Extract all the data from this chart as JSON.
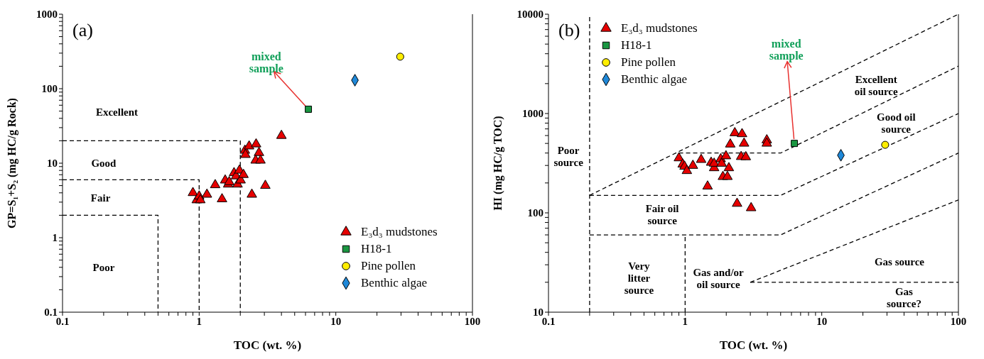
{
  "chart_data": [
    {
      "type": "scatter",
      "title": "(a)",
      "xlabel": "TOC (wt. %)",
      "ylabel": "GP=S₁+S₂ (mg HC/g Rock)",
      "log": "xy",
      "legend": "bottom right",
      "xlim": [
        0.1,
        100
      ],
      "ylim": [
        0.1,
        1000
      ],
      "xticks": [
        0.1,
        {
          "value": 0.2,
          "label": null
        },
        {
          "value": 0.3,
          "label": null
        },
        {
          "value": 0.4,
          "label": null
        },
        {
          "value": 0.5,
          "label": null
        },
        {
          "value": 0.6,
          "label": null
        },
        {
          "value": 0.7,
          "label": null
        },
        {
          "value": 0.8,
          "label": null
        },
        {
          "value": 0.9,
          "label": null
        },
        1,
        {
          "value": 2,
          "label": null
        },
        {
          "value": 3,
          "label": null
        },
        {
          "value": 4,
          "label": null
        },
        {
          "value": 5,
          "label": null
        },
        {
          "value": 6,
          "label": null
        },
        {
          "value": 7,
          "label": null
        },
        {
          "value": 8,
          "label": null
        },
        {
          "value": 9,
          "label": null
        },
        10,
        {
          "value": 20,
          "label": null
        },
        {
          "value": 30,
          "label": null
        },
        {
          "value": 40,
          "label": null
        },
        {
          "value": 50,
          "label": null
        },
        {
          "value": 60,
          "label": null
        },
        {
          "value": 70,
          "label": null
        },
        {
          "value": 80,
          "label": null
        },
        {
          "value": 90,
          "label": null
        },
        100
      ],
      "yticks": [
        0.1,
        {
          "value": 0.2,
          "label": null
        },
        {
          "value": 0.3,
          "label": null
        },
        {
          "value": 0.4,
          "label": null
        },
        {
          "value": 0.5,
          "label": null
        },
        {
          "value": 0.6,
          "label": null
        },
        {
          "value": 0.7,
          "label": null
        },
        {
          "value": 0.8,
          "label": null
        },
        {
          "value": 0.9,
          "label": null
        },
        1,
        {
          "value": 2,
          "label": null
        },
        {
          "value": 3,
          "label": null
        },
        {
          "value": 4,
          "label": null
        },
        {
          "value": 5,
          "label": null
        },
        {
          "value": 6,
          "label": null
        },
        {
          "value": 7,
          "label": null
        },
        {
          "value": 8,
          "label": null
        },
        {
          "value": 9,
          "label": null
        },
        10,
        {
          "value": 20,
          "label": null
        },
        {
          "value": 30,
          "label": null
        },
        {
          "value": 40,
          "label": null
        },
        {
          "value": 50,
          "label": null
        },
        {
          "value": 60,
          "label": null
        },
        {
          "value": 70,
          "label": null
        },
        {
          "value": 80,
          "label": null
        },
        {
          "value": 90,
          "label": null
        },
        100,
        {
          "value": 200,
          "label": null
        },
        {
          "value": 300,
          "label": null
        },
        {
          "value": 400,
          "label": null
        },
        {
          "value": 500,
          "label": null
        },
        {
          "value": 600,
          "label": null
        },
        {
          "value": 700,
          "label": null
        },
        {
          "value": 800,
          "label": null
        },
        {
          "value": 900,
          "label": null
        },
        1000
      ],
      "series": [
        {
          "name": "E₃d₃ mudstones",
          "type": "scatter",
          "marker": "triangle",
          "color": "#e60000",
          "x": [
            0.9,
            0.96,
            1.0,
            1.02,
            1.14,
            1.31,
            1.47,
            1.55,
            1.63,
            1.66,
            1.8,
            1.86,
            1.91,
            1.97,
            2.01,
            2.11,
            2.16,
            2.18,
            2.32,
            2.61,
            2.74,
            2.59,
            2.81,
            2.43,
            3.05,
            4.0
          ],
          "values": [
            4.0,
            3.2,
            3.6,
            3.2,
            3.8,
            5.1,
            3.3,
            5.9,
            5.2,
            5.6,
            7.4,
            6.7,
            5.2,
            8.0,
            5.9,
            7.0,
            14.8,
            13.0,
            16.9,
            18.0,
            13.8,
            10.9,
            10.9,
            3.8,
            5.0,
            23.4
          ]
        },
        {
          "name": "H18-1",
          "type": "scatter",
          "marker": "square",
          "color": "#1a9641",
          "x": [
            6.3
          ],
          "values": [
            53
          ]
        },
        {
          "name": "Pine pollen",
          "type": "scatter",
          "marker": "circle",
          "color": "#ffee00",
          "x": [
            29.6
          ],
          "values": [
            269
          ]
        },
        {
          "name": "Benthic algae",
          "type": "scatter",
          "marker": "diamond",
          "color": "#1f88d8",
          "x": [
            13.8
          ],
          "values": [
            130
          ]
        },
        {
          "type": "line",
          "line_style": "dashed",
          "color": "#000000",
          "x": [
            0.1,
            2,
            2
          ],
          "values": [
            20,
            20,
            0.1
          ]
        },
        {
          "type": "line",
          "line_style": "dashed",
          "color": "#000000",
          "x": [
            0.1,
            1,
            1
          ],
          "values": [
            6,
            6,
            0.1
          ]
        },
        {
          "type": "line",
          "line_style": "dashed",
          "color": "#000000",
          "x": [
            0.1,
            0.5,
            0.5
          ],
          "values": [
            2,
            2,
            0.1
          ]
        }
      ],
      "annotations": [
        {
          "text": "mixed sample",
          "x": 6.3,
          "y": 53
        },
        "Excellent",
        "Good",
        "Fair",
        "Poor"
      ]
    },
    {
      "type": "scatter",
      "title": "(b)",
      "xlabel": "TOC (wt. %)",
      "ylabel": "HI (mg HC/g TOC)",
      "log": "xy",
      "legend": "top left",
      "xlim": [
        0.1,
        100
      ],
      "ylim": [
        10,
        10000
      ],
      "xticks": [
        0.1,
        {
          "value": 0.2,
          "label": null
        },
        {
          "value": 0.3,
          "label": null
        },
        {
          "value": 0.4,
          "label": null
        },
        {
          "value": 0.5,
          "label": null
        },
        {
          "value": 0.6,
          "label": null
        },
        {
          "value": 0.7,
          "label": null
        },
        {
          "value": 0.8,
          "label": null
        },
        {
          "value": 0.9,
          "label": null
        },
        1,
        {
          "value": 2,
          "label": null
        },
        {
          "value": 3,
          "label": null
        },
        {
          "value": 4,
          "label": null
        },
        {
          "value": 5,
          "label": null
        },
        {
          "value": 6,
          "label": null
        },
        {
          "value": 7,
          "label": null
        },
        {
          "value": 8,
          "label": null
        },
        {
          "value": 9,
          "label": null
        },
        10,
        {
          "value": 20,
          "label": null
        },
        {
          "value": 30,
          "label": null
        },
        {
          "value": 40,
          "label": null
        },
        {
          "value": 50,
          "label": null
        },
        {
          "value": 60,
          "label": null
        },
        {
          "value": 70,
          "label": null
        },
        {
          "value": 80,
          "label": null
        },
        {
          "value": 90,
          "label": null
        },
        100
      ],
      "yticks": [
        10,
        {
          "value": 20,
          "label": null
        },
        {
          "value": 30,
          "label": null
        },
        {
          "value": 40,
          "label": null
        },
        {
          "value": 50,
          "label": null
        },
        {
          "value": 60,
          "label": null
        },
        {
          "value": 70,
          "label": null
        },
        {
          "value": 80,
          "label": null
        },
        {
          "value": 90,
          "label": null
        },
        100,
        {
          "value": 200,
          "label": null
        },
        {
          "value": 300,
          "label": null
        },
        {
          "value": 400,
          "label": null
        },
        {
          "value": 500,
          "label": null
        },
        {
          "value": 600,
          "label": null
        },
        {
          "value": 700,
          "label": null
        },
        {
          "value": 800,
          "label": null
        },
        {
          "value": 900,
          "label": null
        },
        1000,
        {
          "value": 2000,
          "label": null
        },
        {
          "value": 3000,
          "label": null
        },
        {
          "value": 4000,
          "label": null
        },
        {
          "value": 5000,
          "label": null
        },
        {
          "value": 6000,
          "label": null
        },
        {
          "value": 7000,
          "label": null
        },
        {
          "value": 8000,
          "label": null
        },
        {
          "value": 9000,
          "label": null
        },
        10000
      ],
      "series": [
        {
          "name": "E₃d₃ mudstones",
          "type": "scatter",
          "marker": "triangle",
          "color": "#e60000",
          "x": [
            0.9,
            0.96,
            0.99,
            1.03,
            1.14,
            1.31,
            1.46,
            1.55,
            1.63,
            1.63,
            1.82,
            1.85,
            1.89,
            1.99,
            2.04,
            2.09,
            2.14,
            2.31,
            2.61,
            2.7,
            2.57,
            2.78,
            2.4,
            3.04,
            3.96,
            3.96
          ],
          "values": [
            356,
            308,
            293,
            265,
            299,
            343,
            185,
            321,
            283,
            314,
            348,
            314,
            231,
            373,
            231,
            283,
            490,
            637,
            623,
            500,
            367,
            365,
            124,
            112,
            540,
            500
          ]
        },
        {
          "name": "H18-1",
          "type": "scatter",
          "marker": "square",
          "color": "#1a9641",
          "x": [
            6.3
          ],
          "values": [
            500
          ]
        },
        {
          "name": "Pine pollen",
          "type": "scatter",
          "marker": "circle",
          "color": "#ffee00",
          "x": [
            29.1
          ],
          "values": [
            484
          ]
        },
        {
          "name": "Benthic algae",
          "type": "scatter",
          "marker": "diamond",
          "color": "#1f88d8",
          "x": [
            13.8
          ],
          "values": [
            380
          ]
        },
        {
          "type": "line",
          "line_style": "dashed",
          "color": "#000000",
          "x": [
            0.2,
            0.2
          ],
          "values": [
            10,
            10000
          ]
        },
        {
          "type": "line",
          "line_style": "dashed",
          "color": "#000000",
          "x": [
            0.2,
            100
          ],
          "values": [
            150,
            10000
          ]
        },
        {
          "type": "line",
          "line_style": "dashed",
          "color": "#000000",
          "x": [
            0.9,
            5,
            100
          ],
          "values": [
            400,
            400,
            3000
          ]
        },
        {
          "type": "line",
          "line_style": "dashed",
          "color": "#000000",
          "x": [
            0.2,
            5,
            100
          ],
          "values": [
            150,
            150,
            1000
          ]
        },
        {
          "type": "line",
          "line_style": "dashed",
          "color": "#000000",
          "x": [
            0.2,
            5,
            100
          ],
          "values": [
            60,
            60,
            400
          ]
        },
        {
          "type": "line",
          "line_style": "dashed",
          "color": "#000000",
          "x": [
            1,
            1
          ],
          "values": [
            10,
            60
          ]
        },
        {
          "type": "line",
          "line_style": "dashed",
          "color": "#000000",
          "x": [
            3,
            100
          ],
          "values": [
            20,
            135
          ]
        },
        {
          "type": "line",
          "line_style": "dashed",
          "color": "#000000",
          "x": [
            3,
            100
          ],
          "values": [
            20,
            20
          ]
        }
      ],
      "annotations": [
        {
          "text": "mixed sample",
          "x": 6.3,
          "y": 500
        },
        "Excellent oil source",
        "Good oil source",
        "Fair oil source",
        "Poor source",
        "Very litter source",
        "Gas and/or oil source",
        "Gas source",
        "Gas source?"
      ]
    }
  ]
}
